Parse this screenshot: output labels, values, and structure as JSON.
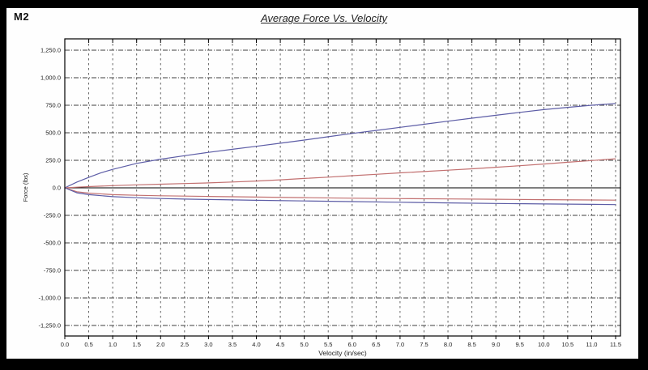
{
  "header": {
    "chart_id": "M2"
  },
  "chart_data": {
    "type": "line",
    "title": "Average Force Vs. Velocity",
    "xlabel": "Velocity (in/sec)",
    "ylabel": "Force (lbs)",
    "xlim": [
      0,
      11.6
    ],
    "ylim": [
      -1350,
      1355
    ],
    "grid": true,
    "legend": "none",
    "x_ticks": [
      {
        "v": 0.0,
        "label": "0.0"
      },
      {
        "v": 0.5,
        "label": "0.5"
      },
      {
        "v": 1.0,
        "label": "1.0"
      },
      {
        "v": 1.5,
        "label": "1.5"
      },
      {
        "v": 2.0,
        "label": "2.0"
      },
      {
        "v": 2.5,
        "label": "2.5"
      },
      {
        "v": 3.0,
        "label": "3.0"
      },
      {
        "v": 3.5,
        "label": "3.5"
      },
      {
        "v": 4.0,
        "label": "4.0"
      },
      {
        "v": 4.5,
        "label": "4.5"
      },
      {
        "v": 5.0,
        "label": "5.0"
      },
      {
        "v": 5.5,
        "label": "5.5"
      },
      {
        "v": 6.0,
        "label": "6.0"
      },
      {
        "v": 6.5,
        "label": "6.5"
      },
      {
        "v": 7.0,
        "label": "7.0"
      },
      {
        "v": 7.5,
        "label": "7.5"
      },
      {
        "v": 8.0,
        "label": "8.0"
      },
      {
        "v": 8.5,
        "label": "8.5"
      },
      {
        "v": 9.0,
        "label": "9.0"
      },
      {
        "v": 9.5,
        "label": "9.5"
      },
      {
        "v": 10.0,
        "label": "10.0"
      },
      {
        "v": 10.5,
        "label": "10.5"
      },
      {
        "v": 11.0,
        "label": "11.0"
      },
      {
        "v": 11.5,
        "label": "11.5"
      }
    ],
    "y_ticks": [
      {
        "f": 1250,
        "label": "1,250.0"
      },
      {
        "f": 1000,
        "label": "1,000.0"
      },
      {
        "f": 750,
        "label": "750.0"
      },
      {
        "f": 500,
        "label": "500.0"
      },
      {
        "f": 250,
        "label": "250.0"
      },
      {
        "f": 0,
        "label": "0.0"
      },
      {
        "f": -250,
        "label": "-250.0"
      },
      {
        "f": -500,
        "label": "-500.0"
      },
      {
        "f": -750,
        "label": "-750.0"
      },
      {
        "f": -1000,
        "label": "-1,000.0"
      },
      {
        "f": -1250,
        "label": "-1,250.0"
      }
    ],
    "colors": {
      "blue_trace": "#5d5da6",
      "red_trace": "#c27070",
      "grid": "#3d3d3d",
      "axis": "#000000"
    },
    "series": [
      {
        "name": "blue-upper",
        "color": "#5d5da6",
        "points": [
          [
            0,
            0
          ],
          [
            0.25,
            52
          ],
          [
            0.5,
            95
          ],
          [
            0.75,
            135
          ],
          [
            1,
            168
          ],
          [
            1.5,
            222
          ],
          [
            2,
            260
          ],
          [
            2.5,
            292
          ],
          [
            3,
            322
          ],
          [
            3.5,
            350
          ],
          [
            4,
            377
          ],
          [
            4.5,
            405
          ],
          [
            5,
            434
          ],
          [
            5.5,
            464
          ],
          [
            6,
            494
          ],
          [
            6.5,
            521
          ],
          [
            7,
            549
          ],
          [
            7.5,
            577
          ],
          [
            8,
            605
          ],
          [
            8.5,
            632
          ],
          [
            9,
            659
          ],
          [
            9.5,
            685
          ],
          [
            10,
            710
          ],
          [
            10.5,
            731
          ],
          [
            11,
            750
          ],
          [
            11.5,
            766
          ]
        ]
      },
      {
        "name": "red-upper",
        "color": "#c27070",
        "points": [
          [
            0,
            0
          ],
          [
            0.25,
            6
          ],
          [
            0.5,
            11
          ],
          [
            1,
            20
          ],
          [
            1.5,
            27
          ],
          [
            2,
            33
          ],
          [
            2.5,
            39
          ],
          [
            3,
            45
          ],
          [
            3.5,
            53
          ],
          [
            4,
            62
          ],
          [
            4.5,
            73
          ],
          [
            5,
            85
          ],
          [
            5.5,
            97
          ],
          [
            6,
            110
          ],
          [
            6.5,
            123
          ],
          [
            7,
            136
          ],
          [
            7.5,
            148
          ],
          [
            8,
            160
          ],
          [
            8.5,
            173
          ],
          [
            9,
            187
          ],
          [
            9.5,
            201
          ],
          [
            10,
            216
          ],
          [
            10.5,
            232
          ],
          [
            11,
            248
          ],
          [
            11.5,
            264
          ]
        ]
      },
      {
        "name": "red-lower",
        "color": "#c27070",
        "points": [
          [
            0,
            0
          ],
          [
            0.25,
            -35
          ],
          [
            0.5,
            -48
          ],
          [
            1,
            -62
          ],
          [
            1.5,
            -68
          ],
          [
            2,
            -72
          ],
          [
            2.5,
            -75
          ],
          [
            3,
            -78
          ],
          [
            4,
            -84
          ],
          [
            5,
            -89
          ],
          [
            6,
            -94
          ],
          [
            7,
            -98
          ],
          [
            8,
            -101
          ],
          [
            9,
            -104
          ],
          [
            10,
            -107
          ],
          [
            11,
            -110
          ],
          [
            11.5,
            -112
          ]
        ]
      },
      {
        "name": "blue-lower",
        "color": "#5d5da6",
        "points": [
          [
            0,
            0
          ],
          [
            0.25,
            -45
          ],
          [
            0.5,
            -62
          ],
          [
            1,
            -80
          ],
          [
            1.5,
            -90
          ],
          [
            2,
            -97
          ],
          [
            2.5,
            -102
          ],
          [
            3,
            -106
          ],
          [
            4,
            -113
          ],
          [
            5,
            -119
          ],
          [
            6,
            -125
          ],
          [
            7,
            -131
          ],
          [
            8,
            -137
          ],
          [
            9,
            -142
          ],
          [
            10,
            -146
          ],
          [
            11,
            -150
          ],
          [
            11.5,
            -152
          ]
        ]
      }
    ]
  }
}
